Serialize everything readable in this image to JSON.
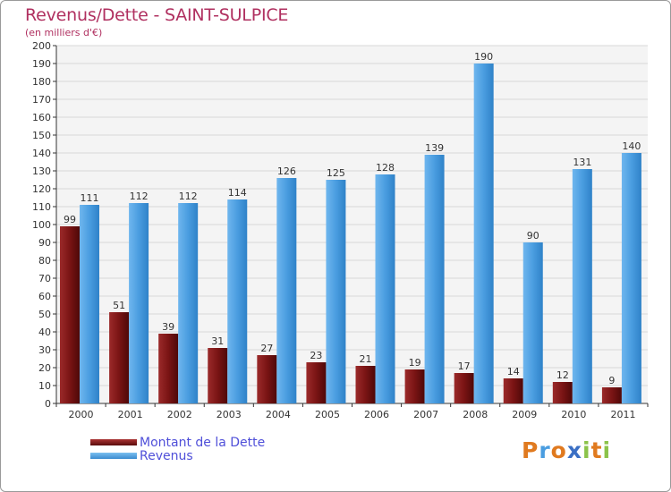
{
  "header": {
    "title": "Revenus/Dette - SAINT-SULPICE",
    "subtitle": "(en milliers d'€)"
  },
  "chart_data": {
    "type": "bar",
    "title": "Revenus/Dette - SAINT-SULPICE",
    "subtitle": "(en milliers d'€)",
    "categories": [
      "2000",
      "2001",
      "2002",
      "2003",
      "2004",
      "2005",
      "2006",
      "2007",
      "2008",
      "2009",
      "2010",
      "2011"
    ],
    "series": [
      {
        "name": "Montant de la Dette",
        "color": "#7a1a1a",
        "values": [
          99,
          51,
          39,
          31,
          27,
          23,
          21,
          19,
          17,
          14,
          12,
          9
        ]
      },
      {
        "name": "Revenus",
        "color": "#4a9de0",
        "values": [
          111,
          112,
          112,
          114,
          126,
          125,
          128,
          139,
          190,
          90,
          131,
          140
        ]
      }
    ],
    "ylim": [
      0,
      200
    ],
    "ytick_step": 10,
    "grid": "horizontal",
    "legend": "bottom-left"
  },
  "legend": {
    "items": [
      {
        "label": "Montant de la Dette",
        "color": "#6b0f0f"
      },
      {
        "label": "Revenus",
        "color": "#4a9de0"
      }
    ]
  },
  "logo": {
    "letters": [
      {
        "ch": "P",
        "color": "#e07a1f"
      },
      {
        "ch": "r",
        "color": "#4a9de0"
      },
      {
        "ch": "o",
        "color": "#e07a1f"
      },
      {
        "ch": "x",
        "color": "#3a6fc4"
      },
      {
        "ch": "i",
        "color": "#8bc34a"
      },
      {
        "ch": "t",
        "color": "#e07a1f"
      },
      {
        "ch": "i",
        "color": "#8bc34a"
      }
    ]
  }
}
